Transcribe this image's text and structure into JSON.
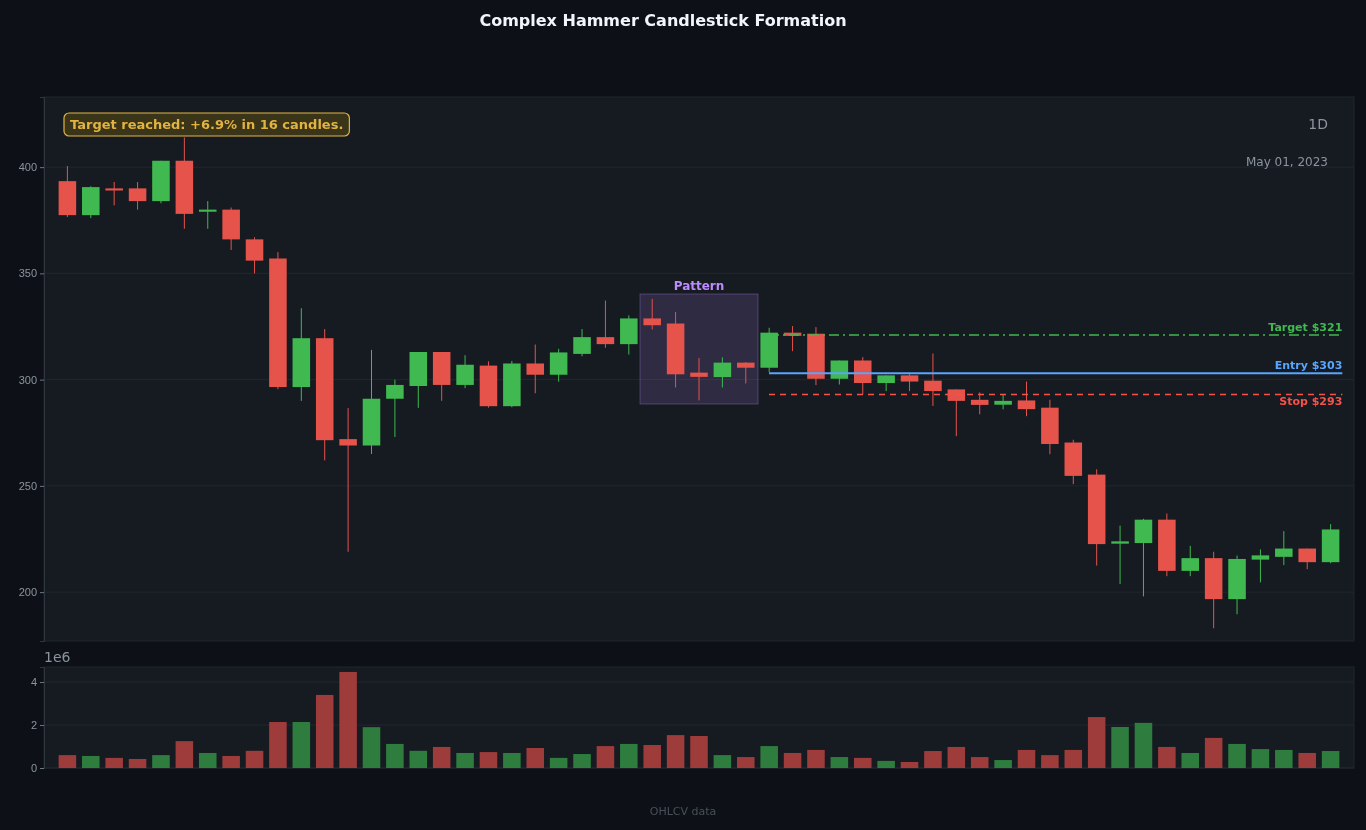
{
  "chart_data": [
    {
      "type": "candlestick",
      "title": "Complex Hammer Candlestick Formation",
      "categories": [
        null,
        null,
        null,
        null,
        null,
        null,
        null,
        null,
        null,
        null,
        null,
        null,
        null,
        null,
        null,
        null,
        null,
        null,
        null,
        null,
        null,
        null,
        null,
        null,
        null,
        null,
        null,
        null,
        null,
        null,
        null,
        null,
        null,
        null,
        null,
        null,
        null,
        null,
        null,
        null,
        null,
        null,
        null,
        null,
        null,
        null,
        null,
        null,
        null,
        null,
        null,
        null,
        null,
        null,
        null
      ],
      "ohlc": [
        [
          393.4,
          400.5,
          376.5,
          377.4
        ],
        [
          377.4,
          391,
          376,
          390.6
        ],
        [
          390,
          393,
          382,
          389
        ],
        [
          390,
          393,
          380,
          384
        ],
        [
          384,
          403,
          383,
          403
        ],
        [
          403,
          414,
          371,
          378
        ],
        [
          379,
          384,
          371,
          380
        ],
        [
          380,
          381,
          361,
          366
        ],
        [
          366,
          367,
          350,
          356
        ],
        [
          357,
          360,
          295.5,
          296.5
        ],
        [
          296.5,
          333.6,
          290,
          319.5
        ],
        [
          319.5,
          323.8,
          262,
          271.5
        ],
        [
          272,
          286.6,
          219,
          269
        ],
        [
          269,
          314,
          265,
          291
        ],
        [
          291,
          300,
          273,
          297.5
        ],
        [
          297,
          313,
          286.7,
          313
        ],
        [
          313,
          313,
          290,
          297.5
        ],
        [
          297.5,
          311.5,
          296,
          307
        ],
        [
          306.6,
          308.6,
          286.8,
          287.5
        ],
        [
          287.5,
          308.8,
          287,
          307.6
        ],
        [
          307.6,
          316.5,
          293.6,
          302.3
        ],
        [
          302.3,
          314.5,
          299,
          312.8
        ],
        [
          312.1,
          323.8,
          311,
          320
        ],
        [
          320,
          337.2,
          315,
          316.7
        ],
        [
          316.7,
          330.2,
          311.8,
          328.8
        ],
        [
          328.8,
          338,
          323.6,
          325.6
        ],
        [
          326.4,
          331.8,
          296.3,
          302.5
        ],
        [
          303.3,
          310.2,
          290.2,
          301.3
        ],
        [
          301.2,
          310.5,
          296.3,
          308
        ],
        [
          308,
          308.2,
          298.2,
          305.6
        ],
        [
          305.6,
          324.4,
          303.6,
          322.1
        ],
        [
          322.1,
          325.2,
          313.4,
          320.6
        ],
        [
          321.6,
          324.7,
          297.4,
          300.4
        ],
        [
          300.4,
          309,
          297.7,
          309
        ],
        [
          309,
          310.6,
          293,
          298.4
        ],
        [
          298.4,
          302,
          294.6,
          302
        ],
        [
          302,
          302.8,
          294.6,
          299.1
        ],
        [
          299.5,
          312.3,
          287.6,
          294.6
        ],
        [
          295.4,
          295.4,
          273.4,
          290
        ],
        [
          290.5,
          294,
          283.7,
          288.1
        ],
        [
          288.2,
          293,
          286,
          290
        ],
        [
          290.2,
          299.1,
          282.8,
          286.1
        ],
        [
          286.8,
          290.5,
          264.9,
          269.7
        ],
        [
          270.4,
          271.7,
          250.8,
          254.7
        ],
        [
          255.3,
          257.8,
          212.5,
          222.6
        ],
        [
          222.8,
          231.3,
          203.8,
          223.9
        ],
        [
          223.1,
          234.5,
          198,
          234.1
        ],
        [
          234.1,
          237,
          207.5,
          210
        ],
        [
          210,
          221.8,
          207.5,
          216
        ],
        [
          216,
          219,
          183,
          196.7
        ],
        [
          196.7,
          217.2,
          189.6,
          215.6
        ],
        [
          215.3,
          220.1,
          204.6,
          217.3
        ],
        [
          216.6,
          228.7,
          212.7,
          220.5
        ],
        [
          220.5,
          220.5,
          210.8,
          214.1
        ],
        [
          214.1,
          232,
          213.6,
          229.5
        ]
      ],
      "colors": [
        "#e5534b",
        "#3fb950",
        "#e5534b",
        "#e5534b",
        "#3fb950",
        "#e5534b",
        "#3fb950",
        "#e5534b",
        "#e5534b",
        "#e5534b",
        "#3fb950",
        "#e5534b",
        "#e5534b",
        "#3fb950",
        "#3fb950",
        "#3fb950",
        "#e5534b",
        "#3fb950",
        "#e5534b",
        "#3fb950",
        "#e5534b",
        "#3fb950",
        "#3fb950",
        "#e5534b",
        "#3fb950",
        "#e5534b",
        "#e5534b",
        "#e5534b",
        "#3fb950",
        "#e5534b",
        "#3fb950",
        "#e5534b",
        "#e5534b",
        "#3fb950",
        "#e5534b",
        "#3fb950",
        "#e5534b",
        "#e5534b",
        "#e5534b",
        "#e5534b",
        "#3fb950",
        "#e5534b",
        "#e5534b",
        "#e5534b",
        "#e5534b",
        "#3fb950",
        "#3fb950",
        "#e5534b",
        "#3fb950",
        "#e5534b",
        "#3fb950",
        "#3fb950",
        "#3fb950",
        "#e5534b",
        "#3fb950"
      ],
      "ylim": [
        177,
        433
      ],
      "yticks": [
        200,
        250,
        300,
        350,
        400
      ],
      "grid": "y",
      "ref_lines": [
        {
          "axis": "y",
          "value": 321,
          "label": "Target $321",
          "color": "#3fb950",
          "line_style": "dashdot"
        },
        {
          "axis": "y",
          "value": 303,
          "label": "Entry $303",
          "color": "#58a6ff",
          "line_style": "solid"
        },
        {
          "axis": "y",
          "value": 293,
          "label": "Stop $293",
          "color": "#f85149",
          "line_style": "dashed"
        }
      ],
      "annotations": [
        "Target reached: +6.9% in 16 candles.",
        "1D",
        "May 01, 2023",
        "OHLCV data",
        "Pattern"
      ]
    },
    {
      "type": "bar",
      "ylabel": "1e6",
      "categories": [
        null,
        null,
        null,
        null,
        null,
        null,
        null,
        null,
        null,
        null,
        null,
        null,
        null,
        null,
        null,
        null,
        null,
        null,
        null,
        null,
        null,
        null,
        null,
        null,
        null,
        null,
        null,
        null,
        null,
        null,
        null,
        null,
        null,
        null,
        null,
        null,
        null,
        null,
        null,
        null,
        null,
        null,
        null,
        null,
        null,
        null,
        null,
        null,
        null,
        null,
        null,
        null,
        null,
        null,
        null
      ],
      "values": [
        0.6,
        0.56,
        0.47,
        0.42,
        0.6,
        1.25,
        0.7,
        0.56,
        0.8,
        2.14,
        2.14,
        3.4,
        4.47,
        1.9,
        1.12,
        0.8,
        0.98,
        0.7,
        0.74,
        0.7,
        0.93,
        0.47,
        0.65,
        1.02,
        1.12,
        1.07,
        1.53,
        1.49,
        0.6,
        0.51,
        1.02,
        0.7,
        0.84,
        0.51,
        0.47,
        0.33,
        0.28,
        0.79,
        0.98,
        0.51,
        0.37,
        0.84,
        0.6,
        0.84,
        2.37,
        1.91,
        2.1,
        0.98,
        0.7,
        1.4,
        1.12,
        0.88,
        0.84,
        0.7,
        0.79
      ],
      "colors": [
        "#9e3b3b",
        "#2e7d3e",
        "#9e3b3b",
        "#9e3b3b",
        "#2e7d3e",
        "#9e3b3b",
        "#2e7d3e",
        "#9e3b3b",
        "#9e3b3b",
        "#9e3b3b",
        "#2e7d3e",
        "#9e3b3b",
        "#9e3b3b",
        "#2e7d3e",
        "#2e7d3e",
        "#2e7d3e",
        "#9e3b3b",
        "#2e7d3e",
        "#9e3b3b",
        "#2e7d3e",
        "#9e3b3b",
        "#2e7d3e",
        "#2e7d3e",
        "#9e3b3b",
        "#2e7d3e",
        "#9e3b3b",
        "#9e3b3b",
        "#9e3b3b",
        "#2e7d3e",
        "#9e3b3b",
        "#2e7d3e",
        "#9e3b3b",
        "#9e3b3b",
        "#2e7d3e",
        "#9e3b3b",
        "#2e7d3e",
        "#9e3b3b",
        "#9e3b3b",
        "#9e3b3b",
        "#9e3b3b",
        "#2e7d3e",
        "#9e3b3b",
        "#9e3b3b",
        "#9e3b3b",
        "#9e3b3b",
        "#2e7d3e",
        "#2e7d3e",
        "#9e3b3b",
        "#2e7d3e",
        "#9e3b3b",
        "#2e7d3e",
        "#2e7d3e",
        "#2e7d3e",
        "#9e3b3b",
        "#2e7d3e"
      ],
      "ylim": [
        0,
        4.7
      ],
      "yticks": [
        0,
        2,
        4
      ],
      "grid": "y"
    }
  ]
}
